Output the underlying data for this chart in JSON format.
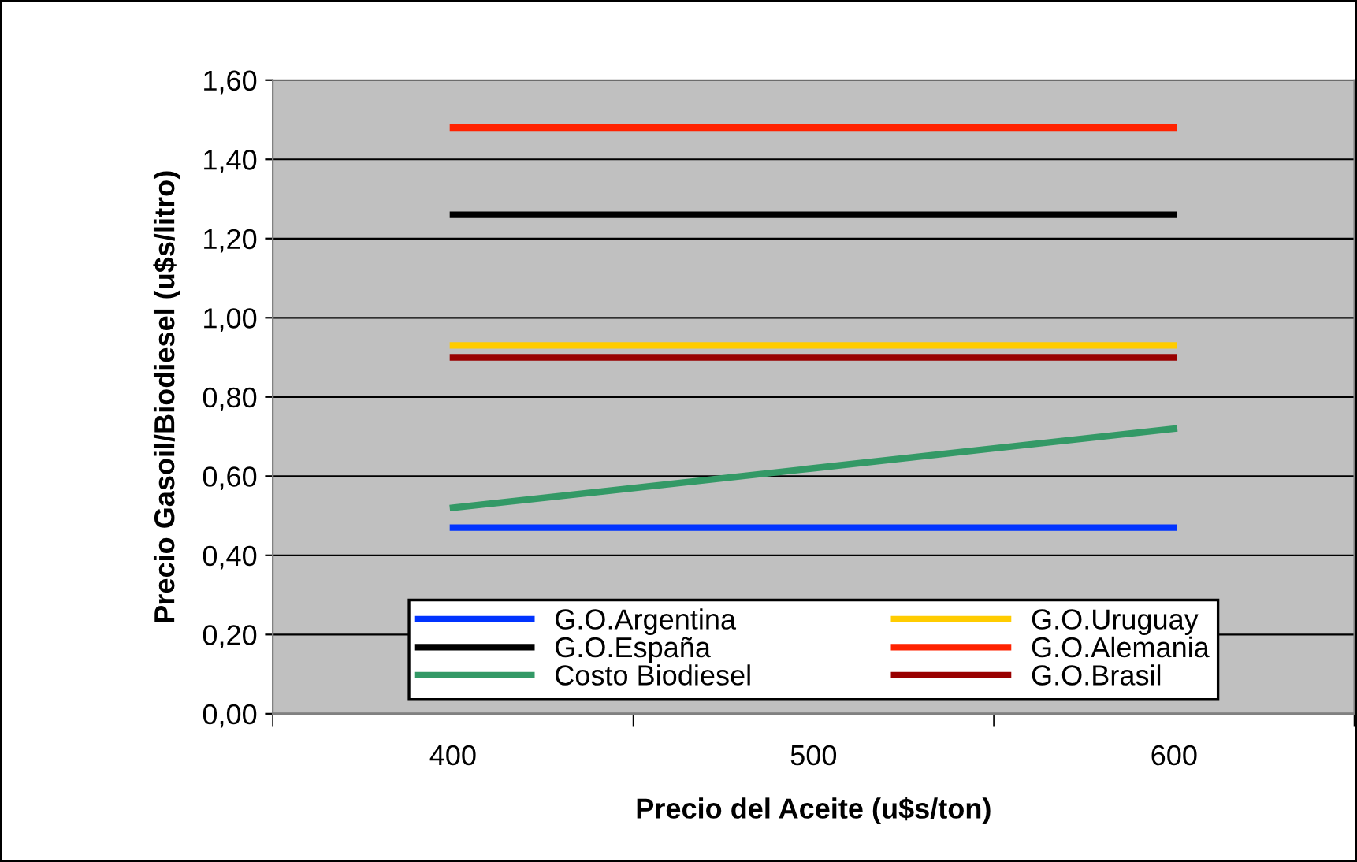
{
  "chart_data": {
    "type": "line",
    "xlabel": "Precio del Aceite (u$s/ton)",
    "ylabel": "Precio Gasoil/Biodiesel (u$s/litro)",
    "categories": [
      "400",
      "500",
      "600"
    ],
    "series": [
      {
        "name": "G.O.Argentina",
        "color": "#0033ff",
        "values": [
          0.47,
          0.47,
          0.47
        ]
      },
      {
        "name": "G.O.Uruguay",
        "color": "#ffcc00",
        "values": [
          0.93,
          0.93,
          0.93
        ]
      },
      {
        "name": "G.O.España",
        "color": "#000000",
        "values": [
          1.26,
          1.26,
          1.26
        ]
      },
      {
        "name": "G.O.Alemania",
        "color": "#ff2200",
        "values": [
          1.48,
          1.48,
          1.48
        ]
      },
      {
        "name": "Costo Biodiesel",
        "color": "#339966",
        "values": [
          0.52,
          0.62,
          0.72
        ]
      },
      {
        "name": "G.O.Brasil",
        "color": "#990000",
        "values": [
          0.9,
          0.9,
          0.9
        ]
      }
    ],
    "ylim": [
      0,
      1.6
    ],
    "yticks": [
      {
        "value": 0,
        "label": "0,00"
      },
      {
        "value": 0.2,
        "label": "0,20"
      },
      {
        "value": 0.4,
        "label": "0,40"
      },
      {
        "value": 0.6,
        "label": "0,60"
      },
      {
        "value": 0.8,
        "label": "0,80"
      },
      {
        "value": 1.0,
        "label": "1,00"
      },
      {
        "value": 1.2,
        "label": "1,20"
      },
      {
        "value": 1.4,
        "label": "1,40"
      },
      {
        "value": 1.6,
        "label": "1,60"
      }
    ],
    "grid": "y",
    "legend": "bottom",
    "marker": "none",
    "line_style": "solid"
  }
}
